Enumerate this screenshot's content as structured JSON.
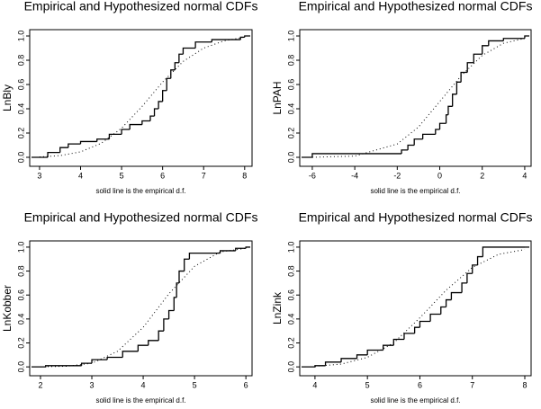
{
  "chart_data": [
    {
      "type": "line",
      "title": "Empirical and Hypothesized normal CDFs",
      "xlabel": "solid line is the empirical d.f.",
      "ylabel": "LnBly",
      "xlim": [
        2.76,
        8.18
      ],
      "ylim": [
        -0.074,
        1.052
      ],
      "xticks": [
        3,
        4,
        5,
        6,
        7,
        8
      ],
      "yticks": [
        {
          "value": 0,
          "label": "0.0"
        },
        0.2,
        0.4,
        0.6,
        0.8,
        {
          "value": 1,
          "label": "1.0"
        }
      ],
      "series": [
        {
          "style": "step",
          "color": "#000000",
          "x": [
            3.0,
            3.2,
            3.5,
            3.7,
            4.0,
            4.4,
            4.7,
            5.0,
            5.2,
            5.5,
            5.7,
            5.8,
            5.9,
            6.0,
            6.1,
            6.2,
            6.3,
            6.4,
            6.5,
            6.8,
            7.2,
            7.9,
            8.0
          ],
          "values": [
            0.0,
            0.04,
            0.08,
            0.11,
            0.13,
            0.15,
            0.19,
            0.23,
            0.27,
            0.3,
            0.34,
            0.4,
            0.46,
            0.55,
            0.65,
            0.72,
            0.78,
            0.85,
            0.9,
            0.95,
            0.97,
            0.99,
            1.0
          ]
        },
        {
          "style": "dotted",
          "color": "#000000",
          "x": [
            3,
            3.5,
            4,
            4.5,
            5,
            5.5,
            6,
            6.5,
            7,
            7.5,
            8
          ],
          "values": [
            0.003,
            0.014,
            0.045,
            0.115,
            0.24,
            0.42,
            0.62,
            0.79,
            0.9,
            0.96,
            0.99
          ]
        }
      ]
    },
    {
      "type": "line",
      "title": "Empirical and Hypothesized normal CDFs",
      "xlabel": "solid line is the empirical d.f.",
      "ylabel": "LnPAH",
      "xlim": [
        -6.59,
        4.3
      ],
      "ylim": [
        -0.074,
        1.052
      ],
      "xticks": [
        -6,
        -4,
        -2,
        0,
        2,
        4
      ],
      "yticks": [
        {
          "value": 0,
          "label": "0.0"
        },
        0.2,
        0.4,
        0.6,
        0.8,
        {
          "value": 1,
          "label": "1.0"
        }
      ],
      "series": [
        {
          "style": "step",
          "color": "#000000",
          "x": [
            -6,
            -1.8,
            -1.5,
            -1.2,
            -0.8,
            -0.2,
            0,
            0.3,
            0.4,
            0.6,
            0.8,
            1.0,
            1.3,
            1.6,
            2.0,
            2.3,
            3.0,
            4.0
          ],
          "values": [
            0.03,
            0.06,
            0.1,
            0.15,
            0.19,
            0.23,
            0.28,
            0.35,
            0.42,
            0.52,
            0.62,
            0.7,
            0.78,
            0.85,
            0.92,
            0.96,
            0.98,
            1.0
          ]
        },
        {
          "style": "dotted",
          "color": "#000000",
          "x": [
            -6,
            -4,
            -2,
            -1,
            0,
            1,
            2,
            3,
            4
          ],
          "values": [
            0.0003,
            0.01,
            0.11,
            0.25,
            0.46,
            0.67,
            0.84,
            0.94,
            0.98
          ]
        }
      ]
    },
    {
      "type": "line",
      "title": "Empirical and Hypothesized normal CDFs",
      "xlabel": "solid line is the empirical d.f.",
      "ylabel": "LnKobber",
      "xlim": [
        1.79,
        6.12
      ],
      "ylim": [
        -0.074,
        1.052
      ],
      "xticks": [
        2,
        3,
        4,
        5,
        6
      ],
      "yticks": [
        {
          "value": 0,
          "label": "0.0"
        },
        0.2,
        0.4,
        0.6,
        0.8,
        {
          "value": 1,
          "label": "1.0"
        }
      ],
      "series": [
        {
          "style": "step",
          "color": "#000000",
          "x": [
            2.1,
            2.8,
            3.0,
            3.3,
            3.6,
            3.9,
            4.1,
            4.3,
            4.4,
            4.5,
            4.6,
            4.65,
            4.7,
            4.8,
            4.9,
            5.5,
            5.8,
            6.0
          ],
          "values": [
            0.01,
            0.03,
            0.06,
            0.08,
            0.13,
            0.18,
            0.22,
            0.3,
            0.4,
            0.47,
            0.58,
            0.7,
            0.8,
            0.9,
            0.95,
            0.97,
            0.99,
            1.0
          ]
        },
        {
          "style": "dotted",
          "color": "#000000",
          "x": [
            2,
            2.5,
            3,
            3.5,
            4,
            4.5,
            5,
            5.5,
            6
          ],
          "values": [
            0.0005,
            0.005,
            0.03,
            0.13,
            0.33,
            0.61,
            0.84,
            0.96,
            0.99
          ]
        }
      ]
    },
    {
      "type": "line",
      "title": "Empirical and Hypothesized normal CDFs",
      "xlabel": "solid line is the empirical d.f.",
      "ylabel": "LnZink",
      "xlim": [
        3.71,
        8.12
      ],
      "ylim": [
        -0.074,
        1.052
      ],
      "xticks": [
        4,
        5,
        6,
        7,
        8
      ],
      "yticks": [
        {
          "value": 0,
          "label": "0.0"
        },
        0.2,
        0.4,
        0.6,
        0.8,
        {
          "value": 1,
          "label": "1.0"
        }
      ],
      "series": [
        {
          "style": "step",
          "color": "#000000",
          "x": [
            4.0,
            4.2,
            4.5,
            4.8,
            5.0,
            5.3,
            5.5,
            5.7,
            5.9,
            6.0,
            6.2,
            6.4,
            6.5,
            6.6,
            6.8,
            6.9,
            7.0,
            7.1,
            7.2,
            8.0
          ],
          "values": [
            0.01,
            0.04,
            0.07,
            0.1,
            0.14,
            0.18,
            0.23,
            0.28,
            0.33,
            0.38,
            0.44,
            0.5,
            0.56,
            0.62,
            0.7,
            0.78,
            0.85,
            0.92,
            1.0,
            1.0
          ]
        },
        {
          "style": "dotted",
          "color": "#000000",
          "x": [
            4,
            4.5,
            5,
            5.5,
            6,
            6.5,
            7,
            7.5,
            8
          ],
          "values": [
            0.005,
            0.023,
            0.08,
            0.2,
            0.41,
            0.64,
            0.83,
            0.94,
            0.98
          ]
        }
      ]
    }
  ]
}
